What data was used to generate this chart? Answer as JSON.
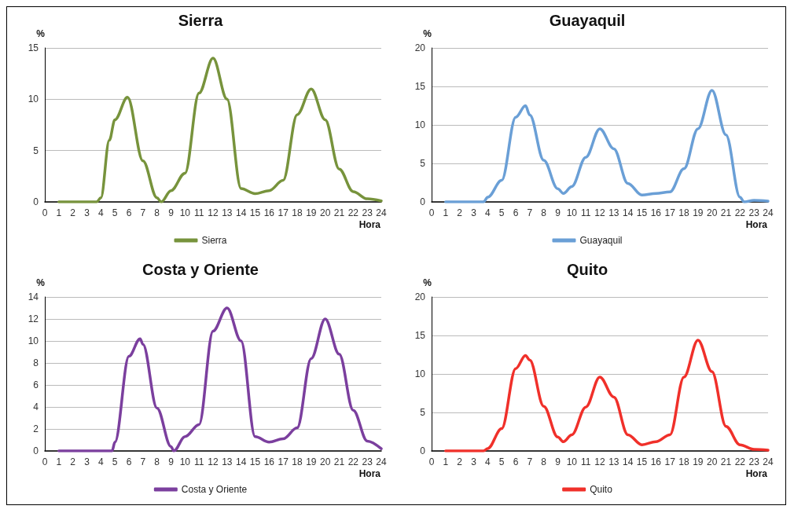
{
  "chart_data": [
    {
      "type": "line",
      "title": "Sierra",
      "xlabel": "Hora",
      "ylabel": "%",
      "xlim": [
        0,
        24
      ],
      "xticks": [
        0,
        1,
        2,
        3,
        4,
        5,
        6,
        7,
        8,
        9,
        10,
        11,
        12,
        13,
        14,
        15,
        16,
        17,
        18,
        19,
        20,
        21,
        22,
        23,
        24
      ],
      "ylim": [
        0,
        15
      ],
      "yticks": [
        0,
        5,
        10,
        15
      ],
      "grid": "y",
      "legend": "bottom",
      "marker": "none",
      "line_style": "solid",
      "series": [
        {
          "name": "Sierra",
          "color": "#77933c",
          "x": [
            1,
            2,
            3,
            3.7,
            4,
            4.6,
            5,
            5.9,
            7,
            8,
            8.3,
            9,
            10,
            11,
            12,
            13,
            14,
            15,
            16,
            17,
            18,
            19,
            20,
            21,
            22,
            23,
            24
          ],
          "values": [
            0,
            0,
            0,
            0,
            0.4,
            6,
            8,
            10.2,
            4,
            0.4,
            0,
            1.1,
            2.8,
            10.6,
            14,
            10,
            1.3,
            0.8,
            1.1,
            2.1,
            8.5,
            11,
            8,
            3.2,
            1,
            0.3,
            0.1
          ]
        }
      ]
    },
    {
      "type": "line",
      "title": "Guayaquil",
      "xlabel": "Hora",
      "ylabel": "%",
      "xlim": [
        0,
        24
      ],
      "xticks": [
        0,
        1,
        2,
        3,
        4,
        5,
        6,
        7,
        8,
        9,
        10,
        11,
        12,
        13,
        14,
        15,
        16,
        17,
        18,
        19,
        20,
        21,
        22,
        23,
        24
      ],
      "ylim": [
        0,
        20
      ],
      "yticks": [
        0,
        5,
        10,
        15,
        20
      ],
      "grid": "y",
      "legend": "bottom",
      "marker": "none",
      "line_style": "solid",
      "series": [
        {
          "name": "Guayaquil",
          "color": "#6a9fd6",
          "x": [
            1,
            2,
            3,
            3.7,
            4,
            5,
            6,
            6.7,
            7,
            8,
            9,
            9.4,
            10,
            11,
            12,
            13,
            14,
            15,
            16,
            17,
            18,
            19,
            20,
            21,
            22,
            22.3,
            23,
            24
          ],
          "values": [
            0,
            0,
            0,
            0,
            0.6,
            2.8,
            11,
            12.5,
            11.3,
            5.4,
            1.7,
            1.1,
            2,
            5.8,
            9.5,
            6.9,
            2.4,
            0.9,
            1.1,
            1.3,
            4.3,
            9.5,
            14.5,
            8.7,
            0.6,
            0,
            0.2,
            0.1
          ]
        }
      ]
    },
    {
      "type": "line",
      "title": "Costa y Oriente",
      "xlabel": "Hora",
      "ylabel": "%",
      "xlim": [
        0,
        24
      ],
      "xticks": [
        0,
        1,
        2,
        3,
        4,
        5,
        6,
        7,
        8,
        9,
        10,
        11,
        12,
        13,
        14,
        15,
        16,
        17,
        18,
        19,
        20,
        21,
        22,
        23,
        24
      ],
      "ylim": [
        0,
        14
      ],
      "yticks": [
        0,
        2,
        4,
        6,
        8,
        10,
        12,
        14
      ],
      "grid": "y",
      "legend": "bottom",
      "marker": "none",
      "line_style": "solid",
      "series": [
        {
          "name": "Costa y Oriente",
          "color": "#7b3f9e",
          "x": [
            1,
            2,
            3,
            4,
            4.8,
            5,
            6,
            6.8,
            7,
            8,
            9,
            9.2,
            10,
            11,
            12,
            13,
            14,
            15,
            16,
            17,
            18,
            19,
            20,
            21,
            22,
            23,
            24
          ],
          "values": [
            0,
            0,
            0,
            0,
            0,
            0.8,
            8.6,
            10.2,
            9.7,
            3.9,
            0.4,
            0,
            1.3,
            2.4,
            10.9,
            13,
            10,
            1.3,
            0.8,
            1.1,
            2.1,
            8.4,
            12,
            8.8,
            3.7,
            0.9,
            0.2
          ]
        }
      ]
    },
    {
      "type": "line",
      "title": "Quito",
      "xlabel": "Hora",
      "ylabel": "%",
      "xlim": [
        0,
        24
      ],
      "xticks": [
        0,
        1,
        2,
        3,
        4,
        5,
        6,
        7,
        8,
        9,
        10,
        11,
        12,
        13,
        14,
        15,
        16,
        17,
        18,
        19,
        20,
        21,
        22,
        23,
        24
      ],
      "ylim": [
        0,
        20
      ],
      "yticks": [
        0,
        5,
        10,
        15,
        20
      ],
      "grid": "y",
      "legend": "bottom",
      "marker": "none",
      "line_style": "solid",
      "series": [
        {
          "name": "Quito",
          "color": "#f0302a",
          "x": [
            1,
            2,
            3,
            3.7,
            4,
            5,
            6,
            6.7,
            7,
            8,
            9,
            9.4,
            10,
            11,
            12,
            13,
            14,
            15,
            16,
            17,
            18,
            19,
            20,
            21,
            22,
            23,
            24
          ],
          "values": [
            0,
            0,
            0,
            0,
            0.3,
            2.9,
            10.7,
            12.4,
            11.8,
            5.8,
            1.8,
            1.2,
            2.1,
            5.7,
            9.6,
            7,
            2.1,
            0.8,
            1.2,
            2.1,
            9.6,
            14.4,
            10.3,
            3.2,
            0.8,
            0.2,
            0.1
          ]
        }
      ]
    }
  ]
}
